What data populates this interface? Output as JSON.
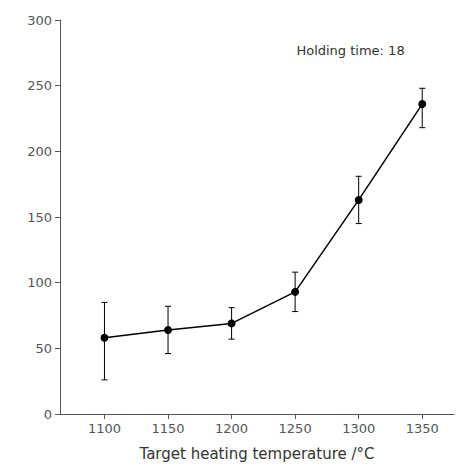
{
  "chart_data": {
    "type": "line",
    "xlabel": "Target heating temperature /°C",
    "annotation": "Holding time: 18",
    "x": [
      1100,
      1150,
      1200,
      1250,
      1300,
      1350
    ],
    "values": [
      58,
      64,
      69,
      93,
      163,
      236
    ],
    "yerr_lower": [
      32,
      18,
      12,
      15,
      18,
      18
    ],
    "yerr_upper": [
      27,
      18,
      12,
      15,
      18,
      12
    ],
    "xlim": [
      1065,
      1375
    ],
    "ylim": [
      0,
      300
    ],
    "xticks": [
      1100,
      1150,
      1200,
      1250,
      1300,
      1350
    ],
    "yticks": [
      0,
      50,
      100,
      150,
      200,
      250,
      300
    ],
    "color": "#000000",
    "marker": "circle",
    "grid": false
  }
}
